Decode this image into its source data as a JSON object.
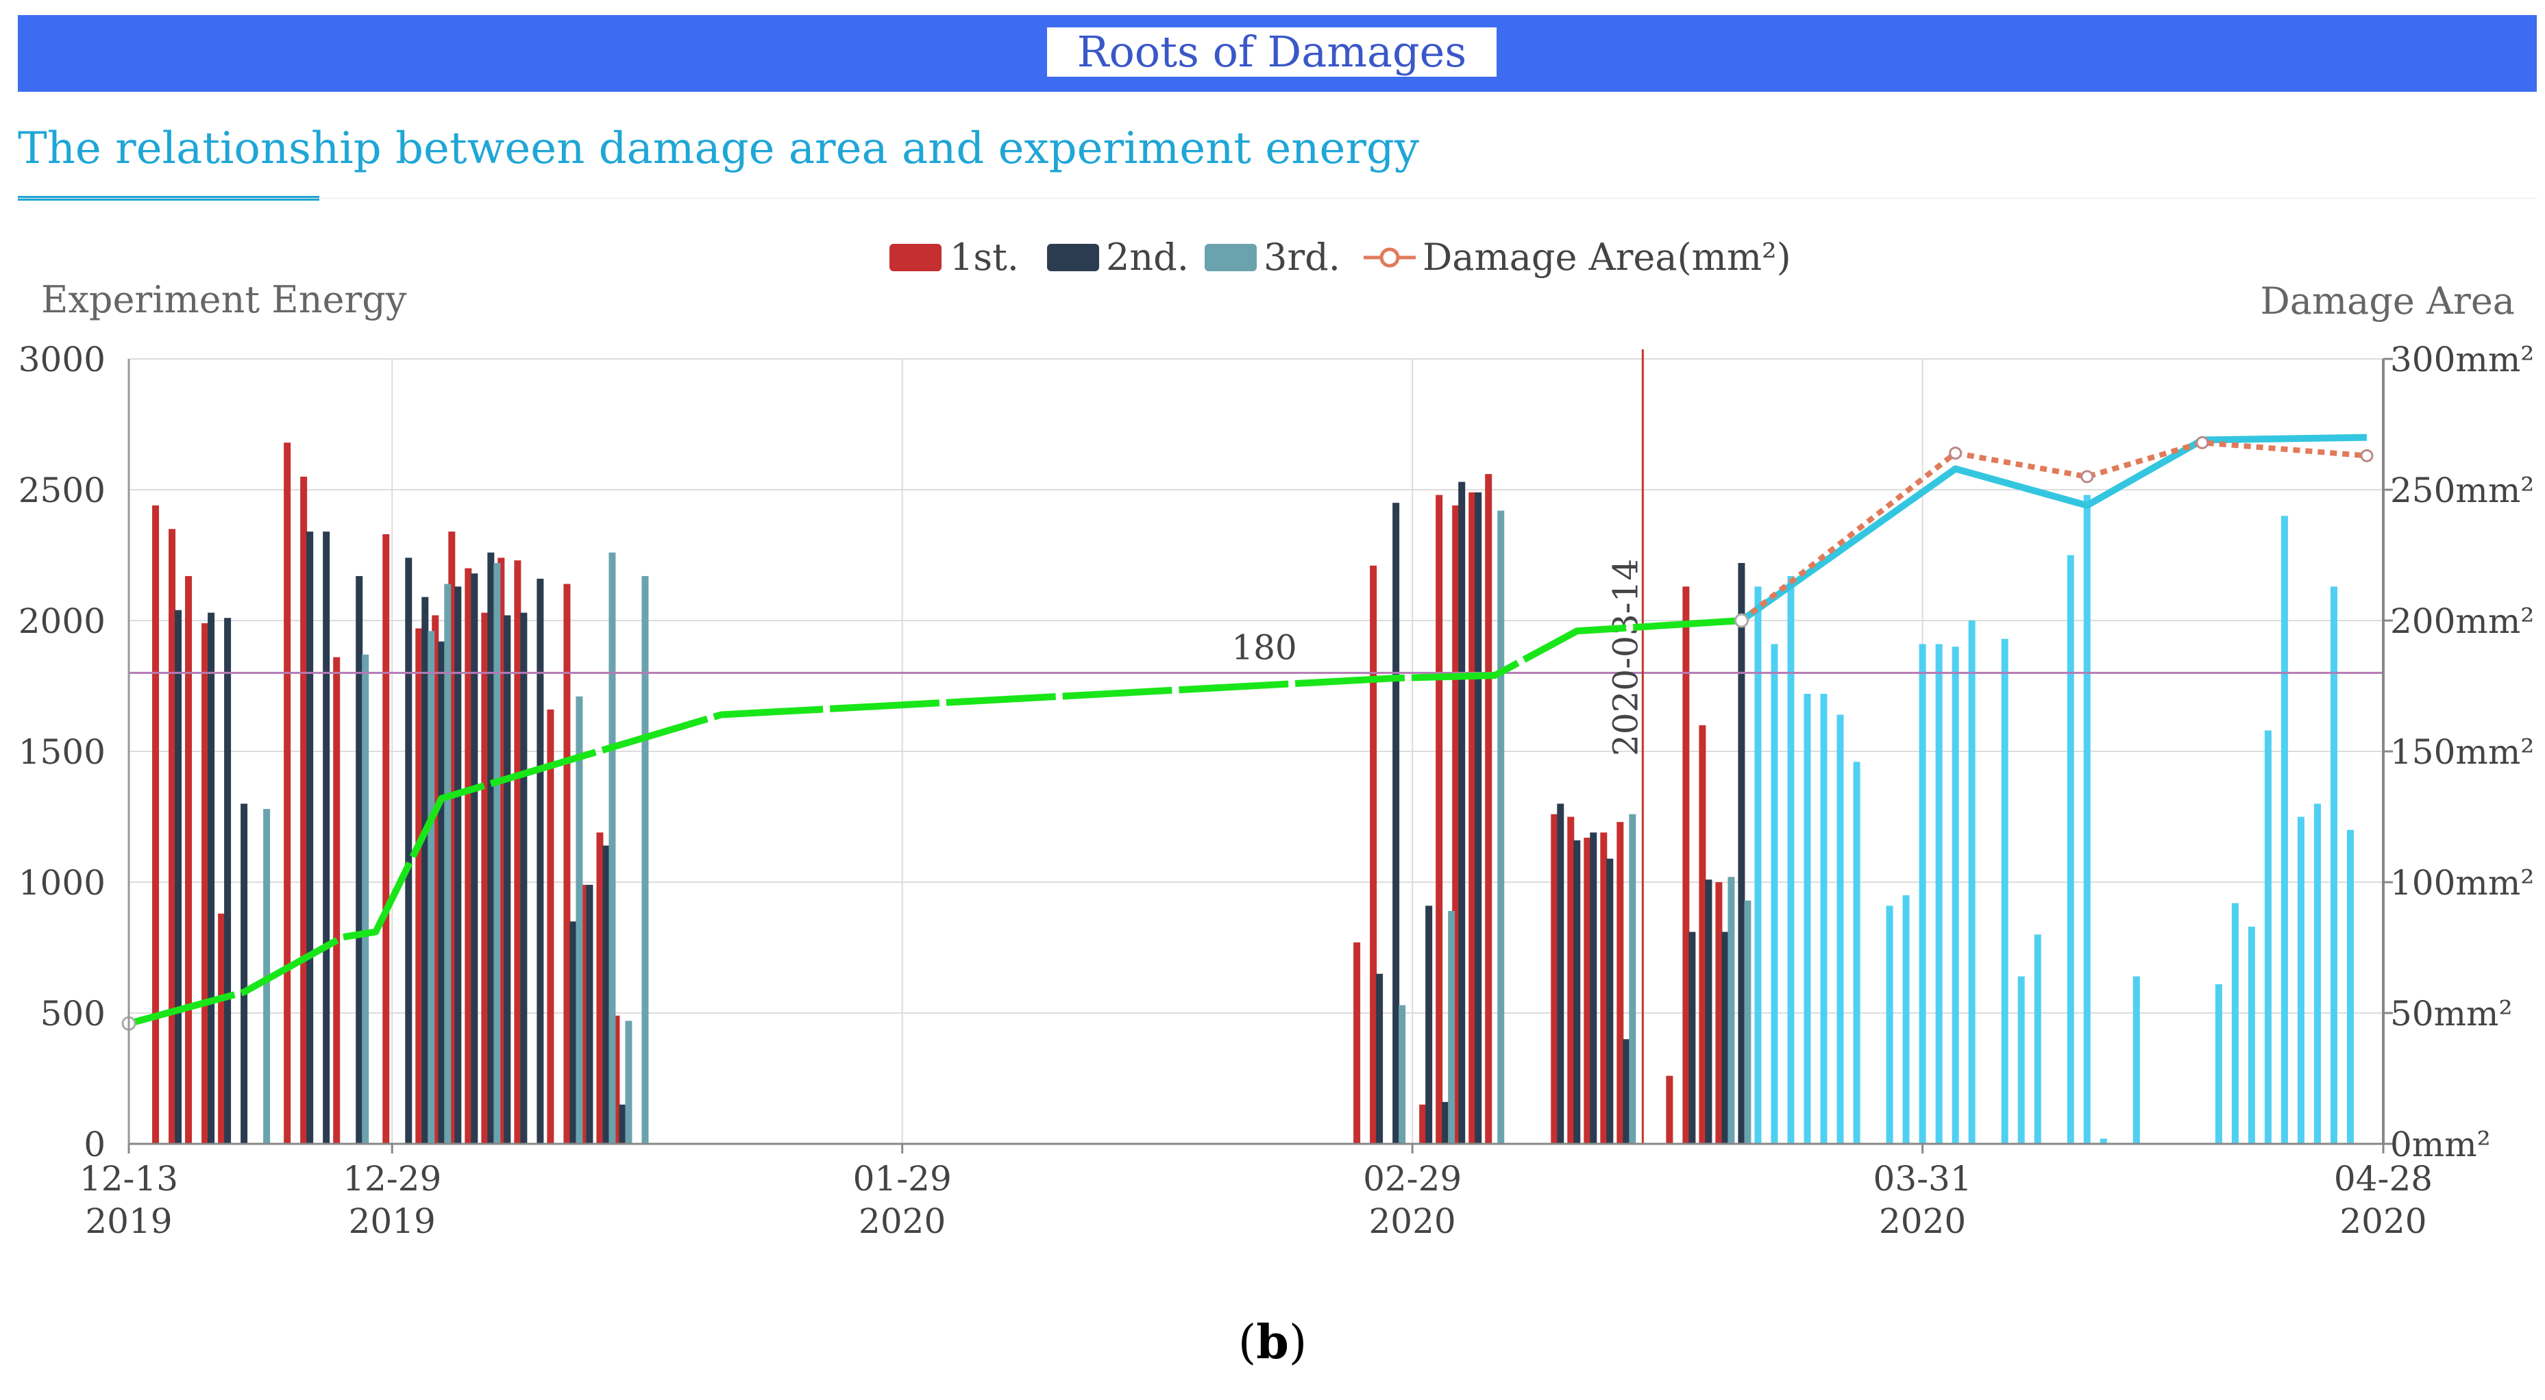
{
  "header": {
    "banner_title": "Roots of Damages",
    "subtitle": "The relationship between damage area and experiment energy",
    "caption_prefix": "(",
    "caption_letter": "b",
    "caption_suffix": ")"
  },
  "colors": {
    "banner": "#3d6cf0",
    "first": "#c62f2f",
    "second": "#2b3c50",
    "third": "#6aa3ae",
    "future": "#4fd0f2",
    "damage_dotted": "#e07b5a",
    "fit_line": "#19e619",
    "forecast_line": "#34c6e0",
    "threshold": "#b57ab5",
    "marker": "#c0392b"
  },
  "chart_data": {
    "type": "bar",
    "y_left_title": "Experiment Energy",
    "y_right_title": "Damage Area",
    "y_left_range": [
      0,
      3000
    ],
    "y_left_ticks": [
      "0",
      "500",
      "1000",
      "1500",
      "2000",
      "2500",
      "3000"
    ],
    "y_right_range": [
      0,
      300
    ],
    "y_right_ticks": [
      "0mm²",
      "50mm²",
      "100mm²",
      "150mm²",
      "200mm²",
      "250mm²",
      "300mm²"
    ],
    "x_ticks": [
      {
        "date": "2019-12-13",
        "top": "12-13",
        "bottom": "2019"
      },
      {
        "date": "2019-12-29",
        "top": "12-29",
        "bottom": "2019"
      },
      {
        "date": "2020-01-29",
        "top": "01-29",
        "bottom": "2020"
      },
      {
        "date": "2020-02-29",
        "top": "02-29",
        "bottom": "2020"
      },
      {
        "date": "2020-03-31",
        "top": "03-31",
        "bottom": "2020"
      },
      {
        "date": "2020-04-28",
        "top": "04-28",
        "bottom": "2020"
      }
    ],
    "x_range": [
      "2019-12-13",
      "2020-04-28"
    ],
    "grid": true,
    "legend_position": "top",
    "legend": [
      "1st.",
      "2nd.",
      "3rd.",
      "Damage Area(mm²)"
    ],
    "threshold_line": {
      "value": 1800,
      "label": "180"
    },
    "marker_line": {
      "date": "2020-03-14",
      "label": "2020-03-14"
    },
    "series": [
      {
        "name": "1st.",
        "points": [
          [
            "2019-12-15",
            2440
          ],
          [
            "2019-12-16",
            2350
          ],
          [
            "2019-12-17",
            2170
          ],
          [
            "2019-12-18",
            1990
          ],
          [
            "2019-12-19",
            880
          ],
          [
            "2019-12-23",
            2680
          ],
          [
            "2019-12-24",
            2550
          ],
          [
            "2019-12-26",
            1860
          ],
          [
            "2019-12-29",
            2330
          ],
          [
            "2019-12-31",
            1970
          ],
          [
            "2020-01-01",
            2020
          ],
          [
            "2020-01-02",
            2340
          ],
          [
            "2020-01-03",
            2200
          ],
          [
            "2020-01-04",
            2030
          ],
          [
            "2020-01-05",
            2240
          ],
          [
            "2020-01-06",
            2230
          ],
          [
            "2020-01-08",
            1660
          ],
          [
            "2020-01-09",
            2140
          ],
          [
            "2020-01-10",
            990
          ],
          [
            "2020-01-11",
            1190
          ],
          [
            "2020-01-12",
            490
          ],
          [
            "2020-02-26",
            770
          ],
          [
            "2020-02-27",
            2210
          ],
          [
            "2020-03-01",
            150
          ],
          [
            "2020-03-02",
            2480
          ],
          [
            "2020-03-03",
            2440
          ],
          [
            "2020-03-04",
            2490
          ],
          [
            "2020-03-05",
            2560
          ],
          [
            "2020-03-09",
            1260
          ],
          [
            "2020-03-10",
            1250
          ],
          [
            "2020-03-11",
            1170
          ],
          [
            "2020-03-12",
            1190
          ],
          [
            "2020-03-13",
            1230
          ],
          [
            "2020-03-16",
            260
          ],
          [
            "2020-03-17",
            2130
          ],
          [
            "2020-03-18",
            1600
          ],
          [
            "2020-03-19",
            1000
          ]
        ]
      },
      {
        "name": "2nd.",
        "points": [
          [
            "2019-12-16",
            2040
          ],
          [
            "2019-12-18",
            2030
          ],
          [
            "2019-12-19",
            2010
          ],
          [
            "2019-12-20",
            1300
          ],
          [
            "2019-12-24",
            2340
          ],
          [
            "2019-12-25",
            2340
          ],
          [
            "2019-12-27",
            2170
          ],
          [
            "2019-12-30",
            2240
          ],
          [
            "2019-12-31",
            2090
          ],
          [
            "2020-01-01",
            1920
          ],
          [
            "2020-01-02",
            2130
          ],
          [
            "2020-01-03",
            2180
          ],
          [
            "2020-01-04",
            2260
          ],
          [
            "2020-01-05",
            2020
          ],
          [
            "2020-01-06",
            2030
          ],
          [
            "2020-01-07",
            2160
          ],
          [
            "2020-01-09",
            850
          ],
          [
            "2020-01-10",
            990
          ],
          [
            "2020-01-11",
            1140
          ],
          [
            "2020-01-12",
            150
          ],
          [
            "2020-02-27",
            650
          ],
          [
            "2020-02-28",
            2450
          ],
          [
            "2020-03-01",
            910
          ],
          [
            "2020-03-02",
            160
          ],
          [
            "2020-03-03",
            2530
          ],
          [
            "2020-03-04",
            2490
          ],
          [
            "2020-03-09",
            1300
          ],
          [
            "2020-03-10",
            1160
          ],
          [
            "2020-03-11",
            1190
          ],
          [
            "2020-03-12",
            1090
          ],
          [
            "2020-03-13",
            400
          ],
          [
            "2020-03-17",
            810
          ],
          [
            "2020-03-18",
            1010
          ],
          [
            "2020-03-19",
            810
          ],
          [
            "2020-03-20",
            2220
          ]
        ]
      },
      {
        "name": "3rd.",
        "points": [
          [
            "2019-12-21",
            1280
          ],
          [
            "2019-12-27",
            1870
          ],
          [
            "2019-12-31",
            1960
          ],
          [
            "2020-01-01",
            2140
          ],
          [
            "2020-01-04",
            2220
          ],
          [
            "2020-01-09",
            1710
          ],
          [
            "2020-01-11",
            2260
          ],
          [
            "2020-01-12",
            470
          ],
          [
            "2020-01-13",
            2170
          ],
          [
            "2020-02-28",
            530
          ],
          [
            "2020-03-02",
            890
          ],
          [
            "2020-03-05",
            2420
          ],
          [
            "2020-03-13",
            1260
          ],
          [
            "2020-03-19",
            1020
          ],
          [
            "2020-03-20",
            930
          ]
        ]
      },
      {
        "name": "",
        "points": [
          [
            "2020-03-21",
            2130
          ],
          [
            "2020-03-22",
            1910
          ],
          [
            "2020-03-23",
            2170
          ],
          [
            "2020-03-24",
            1720
          ],
          [
            "2020-03-25",
            1720
          ],
          [
            "2020-03-26",
            1640
          ],
          [
            "2020-03-27",
            1460
          ],
          [
            "2020-03-29",
            910
          ],
          [
            "2020-03-30",
            950
          ],
          [
            "2020-03-31",
            1910
          ],
          [
            "2020-04-01",
            1910
          ],
          [
            "2020-04-02",
            1900
          ],
          [
            "2020-04-03",
            2000
          ],
          [
            "2020-04-05",
            1930
          ],
          [
            "2020-04-06",
            640
          ],
          [
            "2020-04-07",
            800
          ],
          [
            "2020-04-09",
            2250
          ],
          [
            "2020-04-10",
            2480
          ],
          [
            "2020-04-11",
            20
          ],
          [
            "2020-04-13",
            640
          ],
          [
            "2020-04-18",
            610
          ],
          [
            "2020-04-19",
            920
          ],
          [
            "2020-04-20",
            830
          ],
          [
            "2020-04-21",
            1580
          ],
          [
            "2020-04-22",
            2400
          ],
          [
            "2020-04-23",
            1250
          ],
          [
            "2020-04-24",
            1300
          ],
          [
            "2020-04-25",
            2130
          ],
          [
            "2020-04-26",
            1200
          ]
        ]
      }
    ],
    "damage_area_fit": [
      [
        "2019-12-13",
        46
      ],
      [
        "2019-12-20",
        58
      ],
      [
        "2019-12-26",
        79
      ],
      [
        "2019-12-28",
        81
      ],
      [
        "2020-01-01",
        132
      ],
      [
        "2020-01-10",
        149
      ],
      [
        "2020-01-18",
        164
      ],
      [
        "2020-02-28",
        178
      ],
      [
        "2020-03-05",
        179
      ],
      [
        "2020-03-10",
        196
      ],
      [
        "2020-03-20",
        200
      ]
    ],
    "damage_area_forecast": [
      [
        "2020-03-20",
        200
      ],
      [
        "2020-04-02",
        258
      ],
      [
        "2020-04-10",
        244
      ],
      [
        "2020-04-17",
        269
      ],
      [
        "2020-04-27",
        270
      ]
    ],
    "damage_area_actual": [
      [
        "2020-03-20",
        200
      ],
      [
        "2020-04-02",
        264
      ],
      [
        "2020-04-10",
        255
      ],
      [
        "2020-04-17",
        268
      ],
      [
        "2020-04-27",
        263
      ]
    ]
  }
}
